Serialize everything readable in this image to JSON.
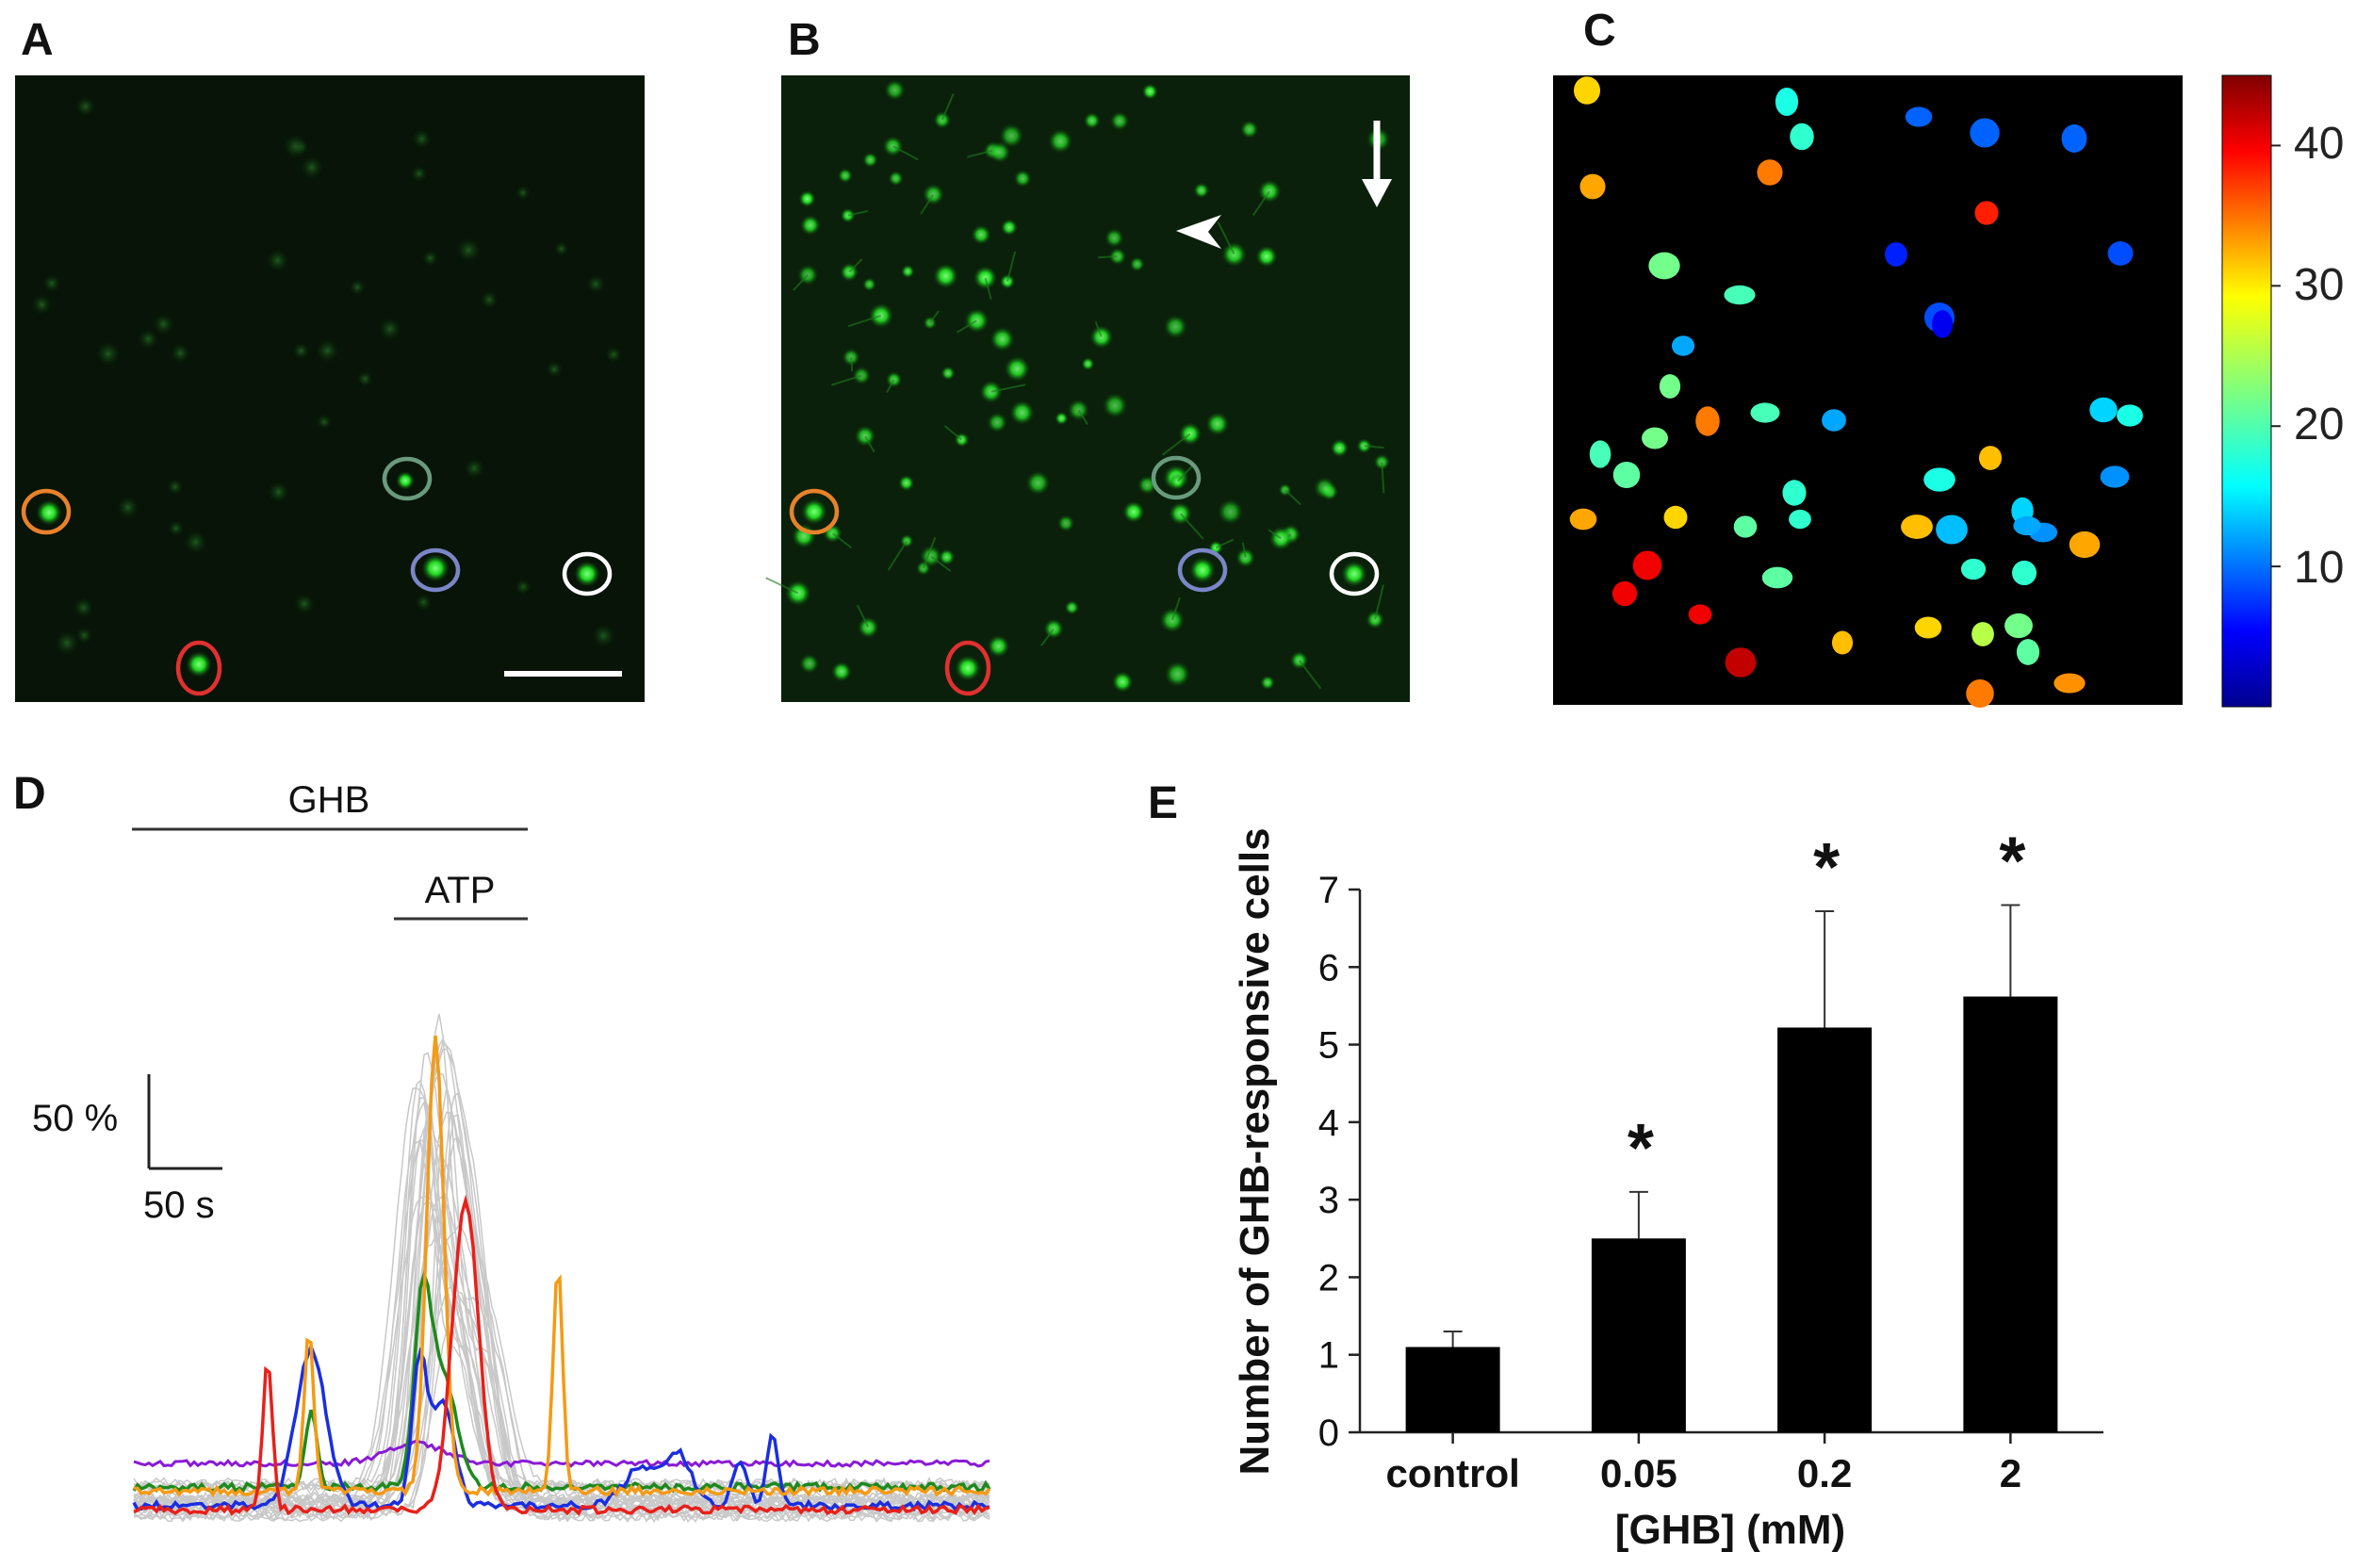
{
  "figure": {
    "panels": {
      "A": "A",
      "B": "B",
      "C": "C",
      "D": "D",
      "E": "E"
    }
  },
  "micrograph_a": {
    "roi_colors": [
      "#e8822a",
      "#6a9a7e",
      "#7b86c6",
      "#ffffff",
      "#e03030"
    ]
  },
  "micrograph_b": {
    "roi_colors": [
      "#e8822a",
      "#6a9a7e",
      "#7b86c6",
      "#ffffff",
      "#e03030"
    ]
  },
  "colorbar": {
    "tick_labels": [
      "40",
      "30",
      "20",
      "10"
    ],
    "range": [
      0,
      45
    ]
  },
  "traces": {
    "ghb_label": "GHB",
    "atp_label": "ATP",
    "scalebar_y": "50 %",
    "scalebar_x": "50 s",
    "colors": {
      "red": "#e8201a",
      "orange": "#f59a15",
      "blue": "#1a2ee0",
      "green": "#1d8a1d",
      "purple": "#8a1ad6",
      "grey": "#c8c8c8"
    }
  },
  "chart_data": {
    "type": "bar",
    "categories": [
      "control",
      "0.05",
      "0.2",
      "2"
    ],
    "values": [
      1.1,
      2.5,
      5.22,
      5.62
    ],
    "errors": [
      0.2,
      0.6,
      1.5,
      1.18
    ],
    "significance": [
      "",
      "*",
      "*",
      "*"
    ],
    "xlabel": "[GHB] (mM)",
    "ylabel": "Number of GHB-responsive cells",
    "ylim": [
      0,
      7
    ],
    "yticks": [
      0,
      1,
      2,
      3,
      4,
      5,
      6,
      7
    ],
    "bar_color": "#000000",
    "grid": false
  }
}
